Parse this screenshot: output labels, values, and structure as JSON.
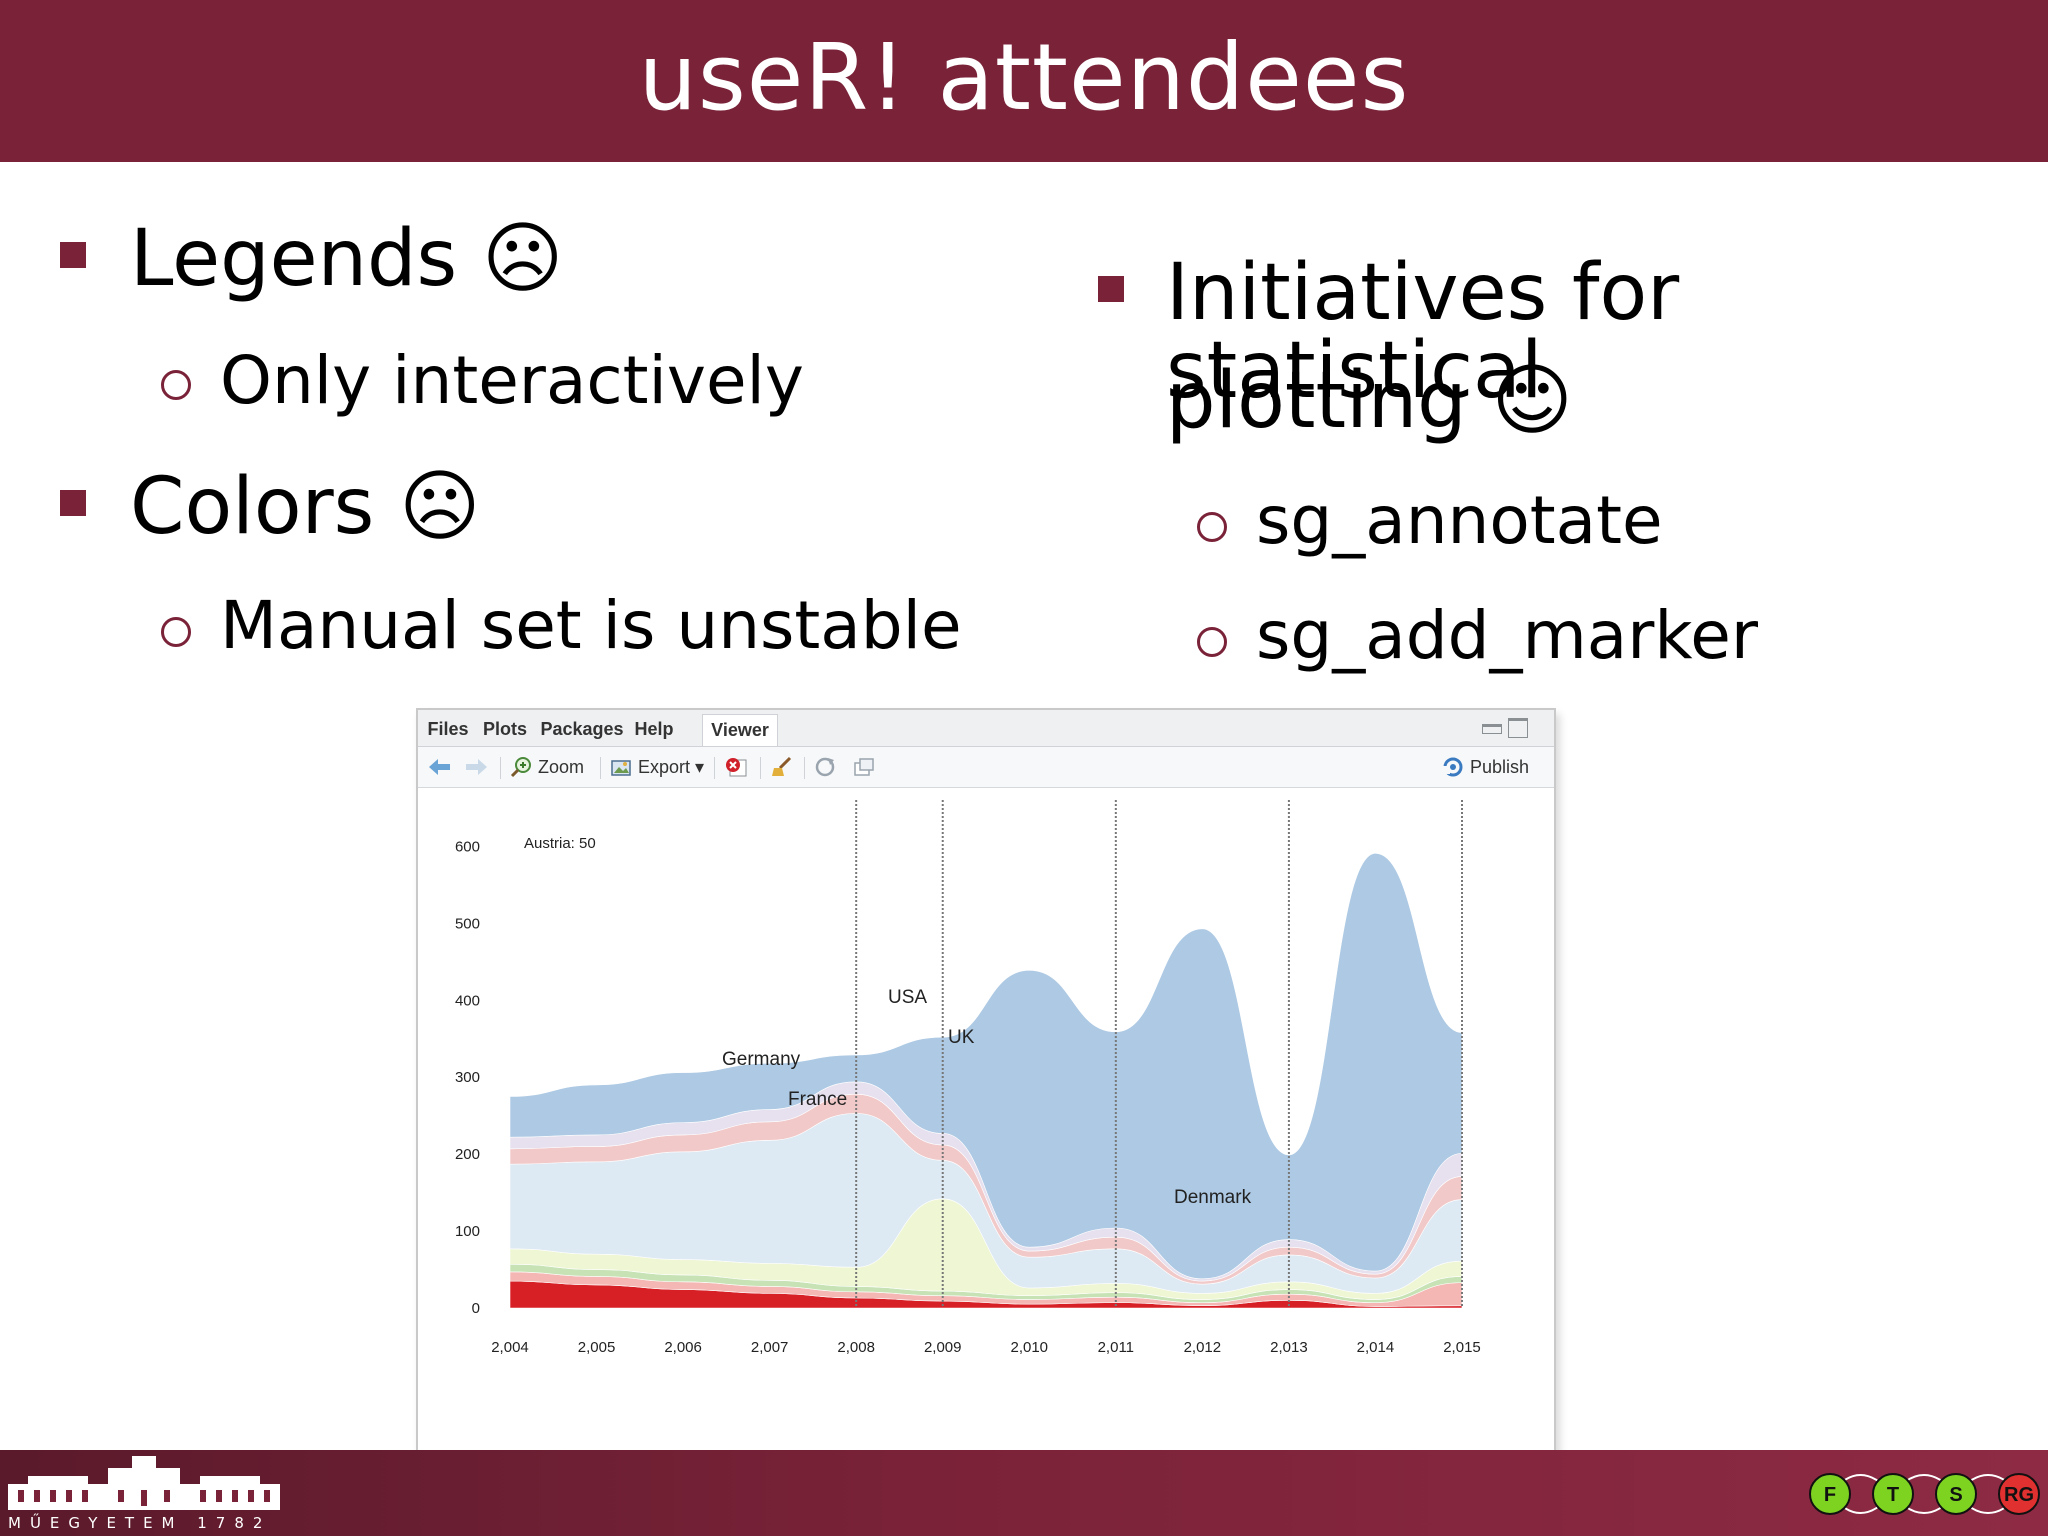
{
  "slide": {
    "title": "useR! attendees"
  },
  "left_bullets": [
    {
      "text": "Legends ☹",
      "sub": "Only interactively"
    },
    {
      "text": "Colors ☹",
      "sub": "Manual set is unstable"
    }
  ],
  "right_bullets": {
    "line1": "Initiatives for statistical",
    "line2": "plotting ☺",
    "subs": [
      "sg_annotate",
      "sg_add_marker"
    ]
  },
  "viewer": {
    "tabs": [
      "Files",
      "Plots",
      "Packages",
      "Help",
      "Viewer"
    ],
    "active_tab": "Viewer",
    "toolbar": {
      "zoom": "Zoom",
      "export": "Export ▾",
      "publish": "Publish"
    }
  },
  "chart_data": {
    "type": "area",
    "annotation": "Austria: 50",
    "x": [
      2004,
      2005,
      2006,
      2007,
      2008,
      2009,
      2010,
      2011,
      2012,
      2013,
      2014,
      2015
    ],
    "x_tick_labels": [
      "2,004",
      "2,005",
      "2,006",
      "2,007",
      "2,008",
      "2,009",
      "2,010",
      "2,011",
      "2,012",
      "2,013",
      "2,014",
      "2,015"
    ],
    "ylim": [
      0,
      650
    ],
    "y_ticks": [
      0,
      100,
      200,
      300,
      400,
      500,
      600
    ],
    "markers_at": [
      2008,
      2009,
      2011,
      2013,
      2015
    ],
    "series": [
      {
        "name": "Denmark",
        "color": "#d71f26",
        "values": [
          35,
          30,
          24,
          19,
          13,
          9,
          5,
          7,
          3,
          10,
          2,
          3
        ]
      },
      {
        "name": "",
        "color": "#f4b7b3",
        "values": [
          12,
          11,
          10,
          9,
          8,
          7,
          6,
          7,
          4,
          8,
          5,
          30
        ]
      },
      {
        "name": "",
        "color": "#c7e3b6",
        "values": [
          10,
          9,
          9,
          8,
          7,
          6,
          5,
          6,
          4,
          6,
          4,
          8
        ]
      },
      {
        "name": "France",
        "color": "#eef6d4",
        "values": [
          20,
          20,
          20,
          22,
          25,
          120,
          10,
          12,
          8,
          10,
          8,
          20
        ]
      },
      {
        "name": "Germany",
        "color": "#dde9f3",
        "values": [
          110,
          120,
          140,
          160,
          200,
          50,
          40,
          45,
          12,
          35,
          20,
          80
        ]
      },
      {
        "name": "UK",
        "color": "#f2c9c9",
        "values": [
          20,
          20,
          22,
          24,
          25,
          20,
          8,
          15,
          4,
          10,
          5,
          30
        ]
      },
      {
        "name": "",
        "color": "#e6e0ef",
        "values": [
          15,
          15,
          16,
          16,
          16,
          15,
          5,
          12,
          3,
          10,
          4,
          30
        ]
      },
      {
        "name": "USA",
        "color": "#adc9e3",
        "values": [
          53,
          65,
          65,
          60,
          35,
          125,
          360,
          255,
          455,
          110,
          543,
          157
        ]
      }
    ]
  }
}
